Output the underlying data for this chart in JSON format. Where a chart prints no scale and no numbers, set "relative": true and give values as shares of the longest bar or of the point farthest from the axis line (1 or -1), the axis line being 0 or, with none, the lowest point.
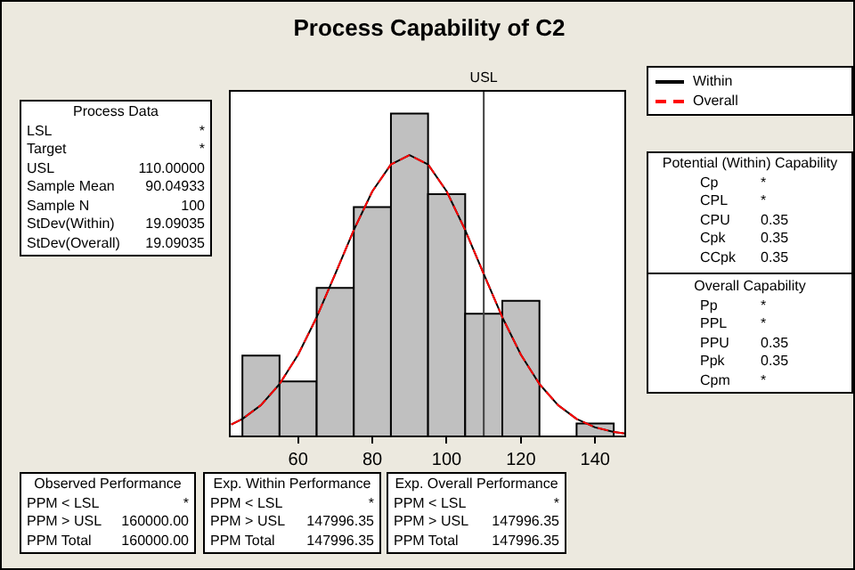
{
  "chart_data": {
    "type": "histogram",
    "title": "Process Capability of C2",
    "relative": true,
    "bins": [
      45,
      55,
      65,
      75,
      85,
      95,
      105,
      115,
      125,
      135,
      145
    ],
    "values": [
      0.25,
      0.17,
      0.46,
      0.71,
      1,
      0.75,
      0.38,
      0.42,
      0,
      0.04
    ],
    "color": "#c0c0c0",
    "xlim": [
      41.6,
      148.1
    ],
    "xticks": [
      60,
      80,
      100,
      120,
      140
    ],
    "ref_lines": [
      {
        "axis": "x",
        "value": 110,
        "label": "USL",
        "color": "#404040"
      }
    ],
    "series": [
      {
        "name": "Within",
        "type": "line",
        "color": "#000000",
        "line_style": "solid",
        "x": [
          42,
          45,
          50,
          55,
          60,
          65,
          70,
          75,
          80,
          85,
          90,
          95,
          100,
          105,
          110,
          115,
          120,
          125,
          130,
          135,
          140,
          145,
          148
        ],
        "values": [
          0.037,
          0.054,
          0.097,
          0.162,
          0.253,
          0.369,
          0.503,
          0.639,
          0.759,
          0.842,
          0.871,
          0.842,
          0.759,
          0.639,
          0.503,
          0.369,
          0.253,
          0.162,
          0.097,
          0.054,
          0.028,
          0.014,
          0.009
        ]
      },
      {
        "name": "Overall",
        "type": "line",
        "color": "#ff0000",
        "line_style": "dashed",
        "x": [
          42,
          45,
          50,
          55,
          60,
          65,
          70,
          75,
          80,
          85,
          90,
          95,
          100,
          105,
          110,
          115,
          120,
          125,
          130,
          135,
          140,
          145,
          148
        ],
        "values": [
          0.037,
          0.054,
          0.097,
          0.162,
          0.253,
          0.369,
          0.503,
          0.639,
          0.759,
          0.842,
          0.871,
          0.842,
          0.759,
          0.639,
          0.503,
          0.369,
          0.253,
          0.162,
          0.097,
          0.054,
          0.028,
          0.014,
          0.009
        ]
      }
    ],
    "legend": "top right",
    "marker": "none",
    "annotations": [
      "Process Data",
      "LSL",
      "*",
      "Target",
      "*",
      "USL",
      "110.00000",
      "Sample Mean",
      "90.04933",
      "Sample N",
      "100",
      "StDev(Within)",
      "19.09035",
      "StDev(Overall)",
      "19.09035",
      "Potential (Within) Capability",
      "Cp",
      "*",
      "CPL",
      "*",
      "CPU",
      "0.35",
      "Cpk",
      "0.35",
      "CCpk",
      "0.35",
      "Overall Capability",
      "Pp",
      "*",
      "PPL",
      "*",
      "PPU",
      "0.35",
      "Ppk",
      "0.35",
      "Cpm",
      "*",
      "Observed Performance",
      "PPM < LSL",
      "*",
      "PPM > USL",
      "160000.00",
      "PPM Total",
      "160000.00",
      "Exp. Within Performance",
      "PPM < LSL",
      "*",
      "PPM > USL",
      "147996.35",
      "PPM Total",
      "147996.35",
      "Exp. Overall Performance",
      "PPM < LSL",
      "*",
      "PPM > USL",
      "147996.35",
      "PPM Total",
      "147996.35"
    ]
  }
}
